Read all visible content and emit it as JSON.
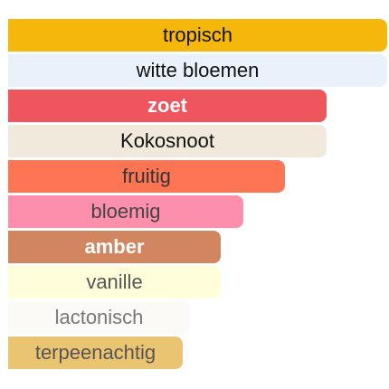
{
  "accords": [
    {
      "label": "tropisch",
      "strength": 1.0,
      "bg": "#f6b70d",
      "color": "#111111",
      "weight": "normal"
    },
    {
      "label": "witte bloemen",
      "strength": 1.0,
      "bg": "#e9f1fb",
      "color": "#111111",
      "weight": "normal"
    },
    {
      "label": "zoet",
      "strength": 0.84,
      "bg": "#ee555c",
      "color": "#ffffff",
      "weight": "bold"
    },
    {
      "label": "Kokosnoot",
      "strength": 0.84,
      "bg": "#f1e9dc",
      "color": "#111111",
      "weight": "normal"
    },
    {
      "label": "fruitig",
      "strength": 0.73,
      "bg": "#fd7553",
      "color": "#333333",
      "weight": "normal"
    },
    {
      "label": "bloemig",
      "strength": 0.62,
      "bg": "#fd8eac",
      "color": "#444444",
      "weight": "normal"
    },
    {
      "label": "amber",
      "strength": 0.56,
      "bg": "#d1865f",
      "color": "#ffffff",
      "weight": "bold"
    },
    {
      "label": "vanille",
      "strength": 0.56,
      "bg": "#fffdda",
      "color": "#555555",
      "weight": "normal"
    },
    {
      "label": "lactonisch",
      "strength": 0.48,
      "bg": "#fbfaf6",
      "color": "#777777",
      "weight": "normal"
    },
    {
      "label": "terpeenachtig",
      "strength": 0.46,
      "bg": "#eac471",
      "color": "#555555",
      "weight": "normal"
    }
  ]
}
